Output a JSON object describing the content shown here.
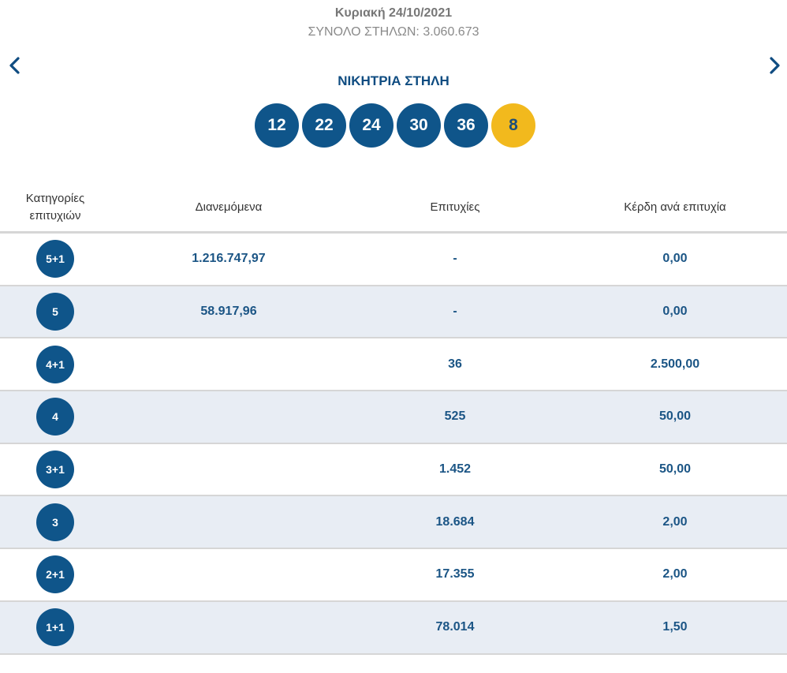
{
  "draw": {
    "date": "Κυριακή 24/10/2021",
    "total_columns": "ΣΥΝΟΛΟ ΣΤΗΛΩΝ: 3.060.673",
    "winning_title": "ΝΙΚΗΤΡΙΑ ΣΤΗΛΗ",
    "numbers": [
      "12",
      "22",
      "24",
      "30",
      "36"
    ],
    "joker": "8"
  },
  "icons": {
    "prev": "chevron-left-icon",
    "next": "chevron-right-icon"
  },
  "colors": {
    "ball_blue": "#0f558a",
    "joker_yellow": "#f2b91d",
    "alt_row": "#e8edf4",
    "text_blue": "#1b5585"
  },
  "table": {
    "headers": {
      "category": "Κατηγορίες επιτυχιών",
      "distributed": "Διανεμόμενα",
      "winners": "Επιτυχίες",
      "prize": "Κέρδη ανά επιτυχία"
    },
    "rows": [
      {
        "category": "5+1",
        "distributed": "1.216.747,97",
        "winners": "-",
        "prize": "0,00"
      },
      {
        "category": "5",
        "distributed": "58.917,96",
        "winners": "-",
        "prize": "0,00"
      },
      {
        "category": "4+1",
        "distributed": "",
        "winners": "36",
        "prize": "2.500,00"
      },
      {
        "category": "4",
        "distributed": "",
        "winners": "525",
        "prize": "50,00"
      },
      {
        "category": "3+1",
        "distributed": "",
        "winners": "1.452",
        "prize": "50,00"
      },
      {
        "category": "3",
        "distributed": "",
        "winners": "18.684",
        "prize": "2,00"
      },
      {
        "category": "2+1",
        "distributed": "",
        "winners": "17.355",
        "prize": "2,00"
      },
      {
        "category": "1+1",
        "distributed": "",
        "winners": "78.014",
        "prize": "1,50"
      }
    ]
  }
}
